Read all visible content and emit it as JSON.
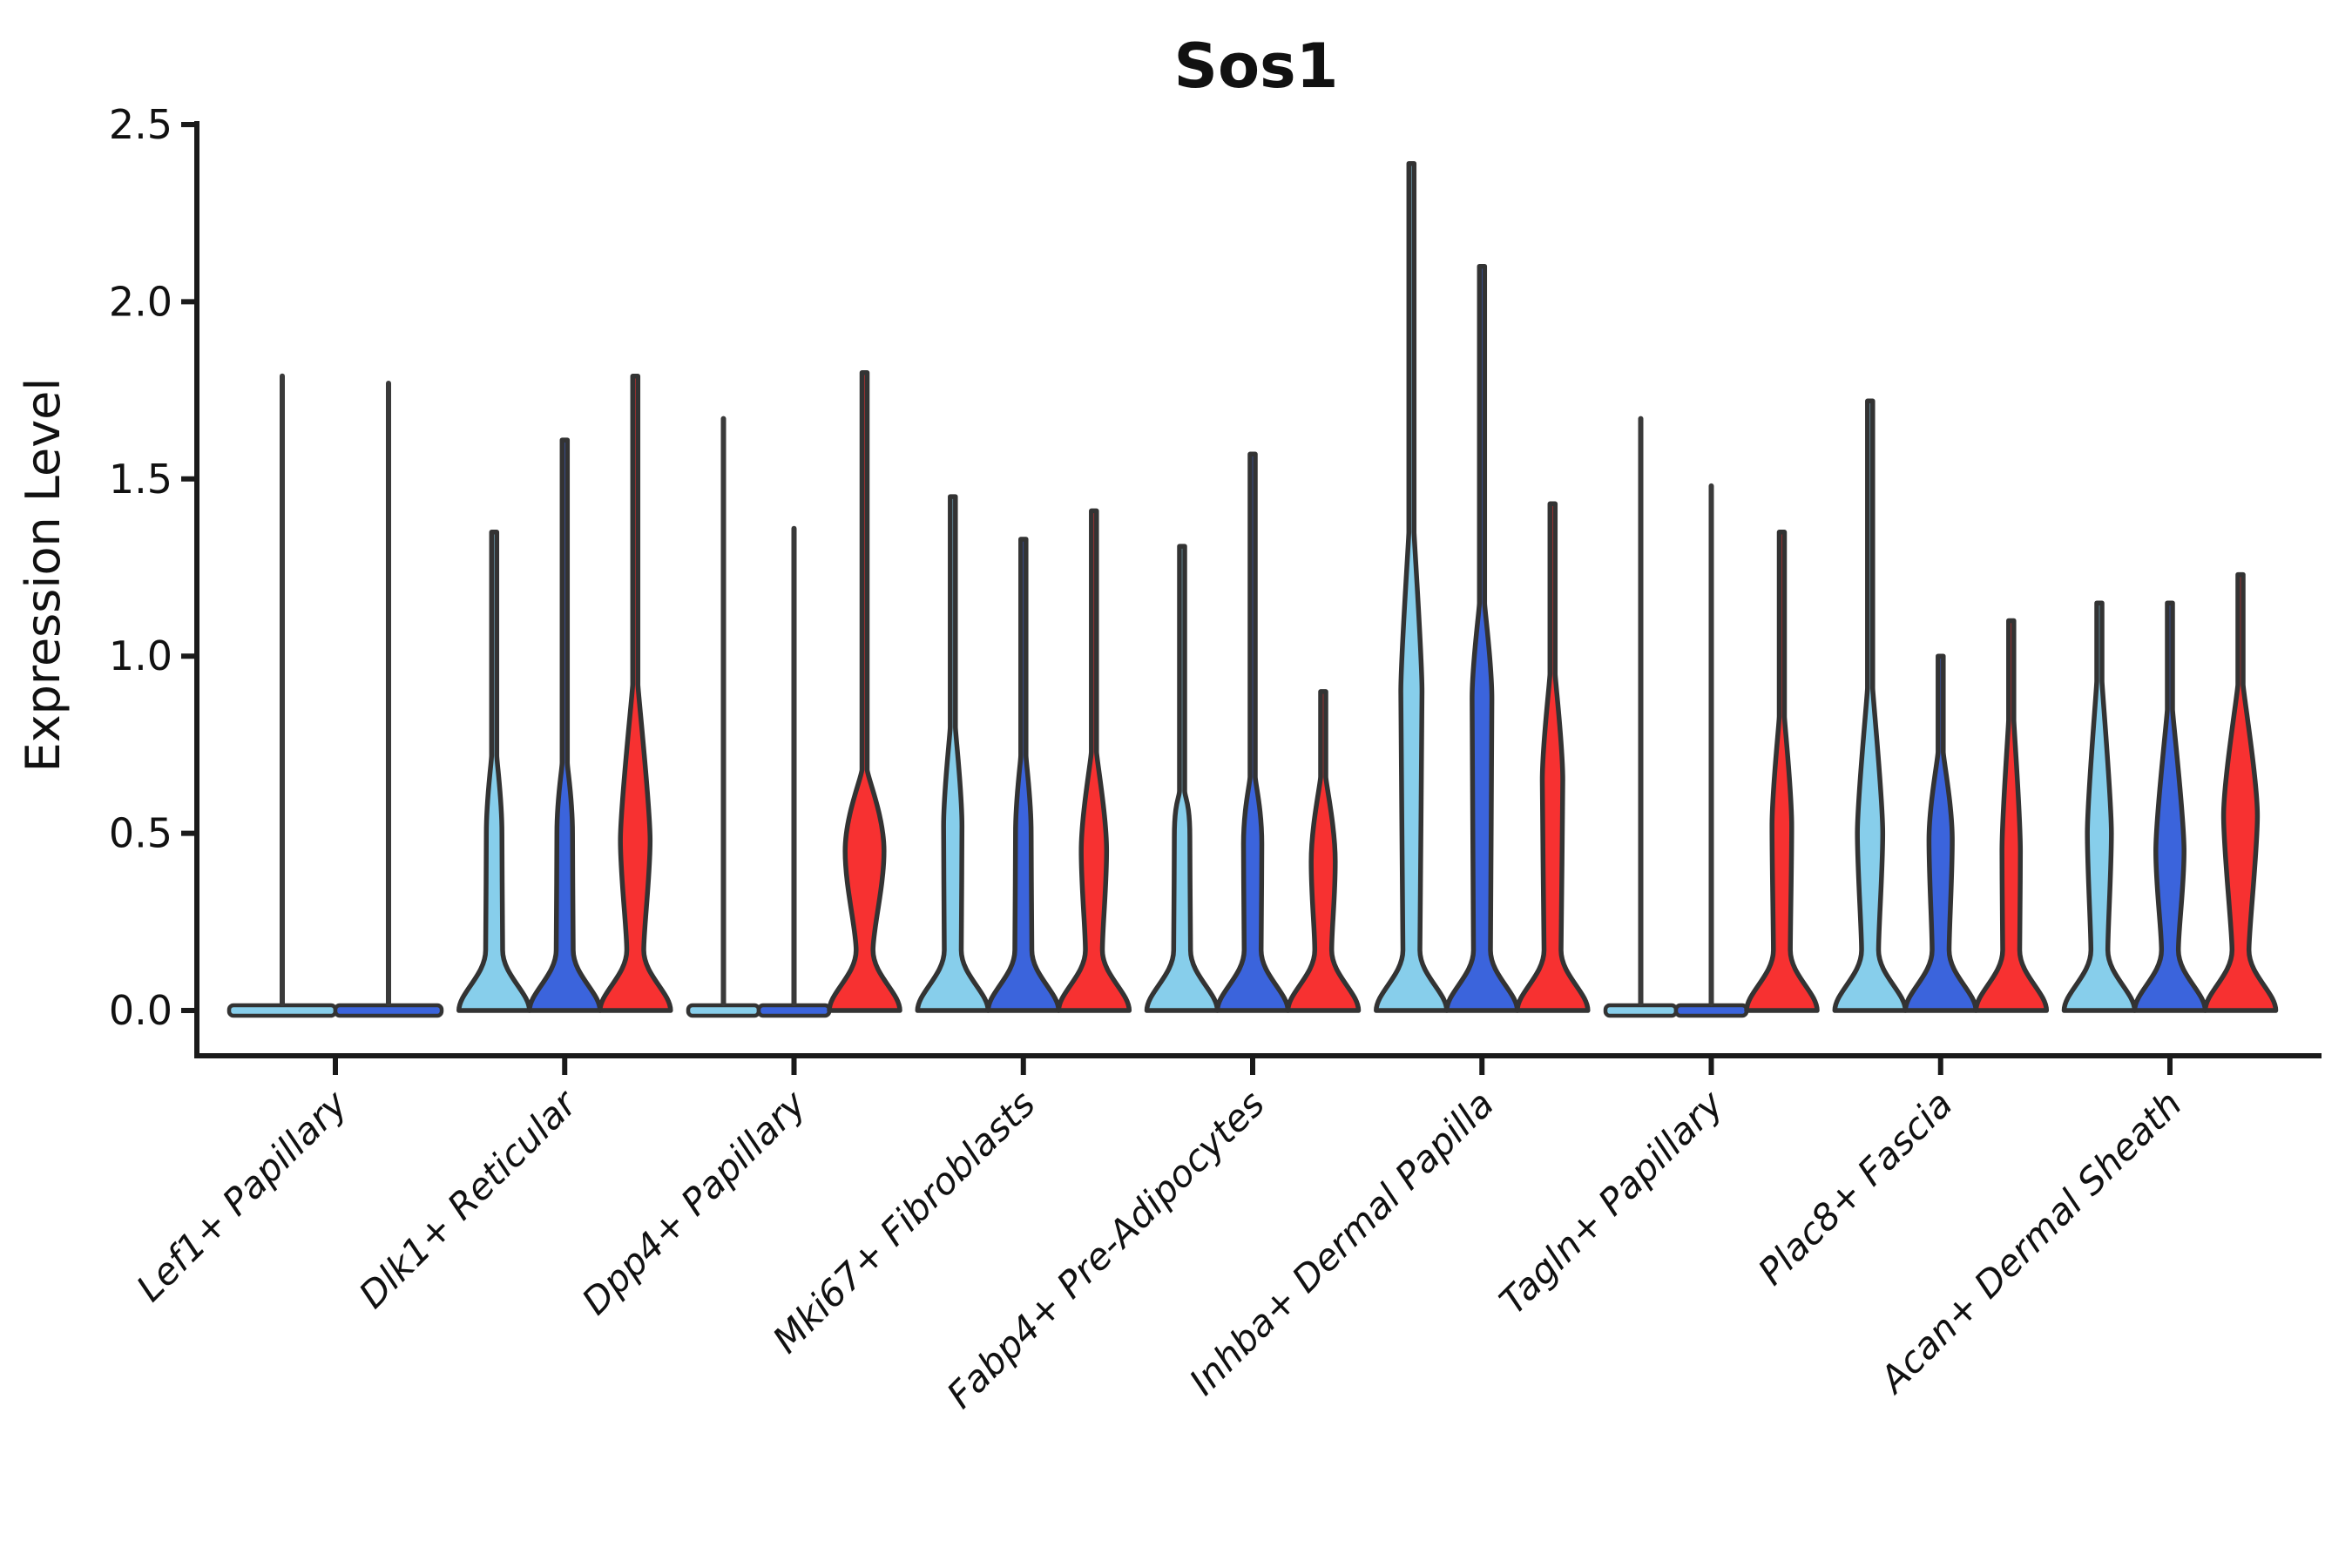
{
  "title": "Sos1",
  "ylabel": "Expression Level",
  "axis_color": "#1a1a1a",
  "violin_outline_color": "#333333",
  "chart_data": {
    "type": "violin",
    "title": "Sos1",
    "xlabel": "",
    "ylabel": "Expression Level",
    "ylim": [
      0,
      2.5
    ],
    "yticks": [
      0.0,
      0.5,
      1.0,
      1.5,
      2.0,
      2.5
    ],
    "ytick_labels": [
      "0.0",
      "0.5",
      "1.0",
      "1.5",
      "2.0",
      "2.5"
    ],
    "grid": false,
    "legend": "none",
    "series_palette": [
      {
        "name": "series-1",
        "color": "#87CEEB"
      },
      {
        "name": "series-2",
        "color": "#3B64DC"
      },
      {
        "name": "series-3",
        "color": "#F73131"
      }
    ],
    "groups": [
      {
        "label": "Lef1+ Papillary",
        "violins": [
          {
            "series": 0,
            "max": 1.79,
            "flat": true
          },
          {
            "series": 1,
            "max": 1.77,
            "flat": true
          }
        ]
      },
      {
        "label": "Dlk1+ Reticular",
        "violins": [
          {
            "series": 0,
            "max": 1.35,
            "flat": false,
            "body_top": 0.72,
            "body_peak": 0.5,
            "body_width": 0.22
          },
          {
            "series": 1,
            "max": 1.61,
            "flat": false,
            "body_top": 0.7,
            "body_peak": 0.5,
            "body_width": 0.22
          },
          {
            "series": 2,
            "max": 1.79,
            "flat": false,
            "body_top": 0.92,
            "body_peak": 0.48,
            "body_width": 0.42
          }
        ]
      },
      {
        "label": "Dpp4+ Papillary",
        "violins": [
          {
            "series": 0,
            "max": 1.67,
            "flat": true
          },
          {
            "series": 1,
            "max": 1.36,
            "flat": true
          },
          {
            "series": 2,
            "max": 1.8,
            "flat": false,
            "body_top": 0.68,
            "body_peak": 0.45,
            "body_width": 0.55
          }
        ]
      },
      {
        "label": "Mki67+ Fibroblasts",
        "violins": [
          {
            "series": 0,
            "max": 1.45,
            "flat": false,
            "body_top": 0.8,
            "body_peak": 0.52,
            "body_width": 0.26
          },
          {
            "series": 1,
            "max": 1.33,
            "flat": false,
            "body_top": 0.72,
            "body_peak": 0.5,
            "body_width": 0.22
          },
          {
            "series": 2,
            "max": 1.41,
            "flat": false,
            "body_top": 0.73,
            "body_peak": 0.45,
            "body_width": 0.36
          }
        ]
      },
      {
        "label": "Fabp4+ Pre-Adipocytes",
        "violins": [
          {
            "series": 0,
            "max": 1.31,
            "flat": false,
            "body_top": 0.62,
            "body_peak": 0.49,
            "body_width": 0.22
          },
          {
            "series": 1,
            "max": 1.57,
            "flat": false,
            "body_top": 0.66,
            "body_peak": 0.47,
            "body_width": 0.26
          },
          {
            "series": 2,
            "max": 0.9,
            "flat": false,
            "body_top": 0.66,
            "body_peak": 0.42,
            "body_width": 0.34
          }
        ]
      },
      {
        "label": "Inhba+ Dermal Papilla",
        "violins": [
          {
            "series": 0,
            "max": 2.39,
            "flat": false,
            "body_top": 1.35,
            "body_peak": 0.9,
            "body_width": 0.3
          },
          {
            "series": 1,
            "max": 2.1,
            "flat": false,
            "body_top": 1.15,
            "body_peak": 0.88,
            "body_width": 0.28
          },
          {
            "series": 2,
            "max": 1.43,
            "flat": false,
            "body_top": 0.95,
            "body_peak": 0.65,
            "body_width": 0.29
          }
        ]
      },
      {
        "label": "Tagln+ Papillary",
        "violins": [
          {
            "series": 0,
            "max": 1.67,
            "flat": true
          },
          {
            "series": 1,
            "max": 1.48,
            "flat": true
          },
          {
            "series": 2,
            "max": 1.35,
            "flat": false,
            "body_top": 0.83,
            "body_peak": 0.52,
            "body_width": 0.28
          }
        ]
      },
      {
        "label": "Plac8+ Fascia",
        "violins": [
          {
            "series": 0,
            "max": 1.72,
            "flat": false,
            "body_top": 0.91,
            "body_peak": 0.5,
            "body_width": 0.36
          },
          {
            "series": 1,
            "max": 1.0,
            "flat": false,
            "body_top": 0.73,
            "body_peak": 0.48,
            "body_width": 0.33
          },
          {
            "series": 2,
            "max": 1.1,
            "flat": false,
            "body_top": 0.82,
            "body_peak": 0.45,
            "body_width": 0.26
          }
        ]
      },
      {
        "label": "Acan+ Dermal Sheath",
        "violins": [
          {
            "series": 0,
            "max": 1.15,
            "flat": false,
            "body_top": 0.93,
            "body_peak": 0.5,
            "body_width": 0.34
          },
          {
            "series": 1,
            "max": 1.15,
            "flat": false,
            "body_top": 0.85,
            "body_peak": 0.45,
            "body_width": 0.4
          },
          {
            "series": 2,
            "max": 1.23,
            "flat": false,
            "body_top": 0.92,
            "body_peak": 0.55,
            "body_width": 0.48
          }
        ]
      }
    ]
  }
}
